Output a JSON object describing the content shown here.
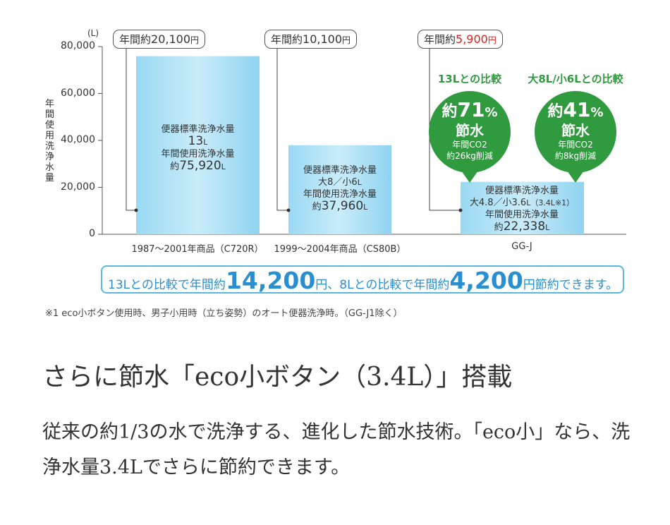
{
  "chart_data": {
    "type": "bar",
    "y_unit": "(L)",
    "ylabel": "年間使用洗浄水量",
    "ylim": [
      0,
      80000
    ],
    "yticks": [
      "80,000",
      "60,000",
      "40,000",
      "20,000",
      "0"
    ],
    "tick_values": [
      80000,
      60000,
      40000,
      20000,
      0
    ],
    "categories": [
      "1987〜2001年商品（C720R）",
      "1999〜2004年商品（CS80B）",
      "GG-J"
    ],
    "values": [
      75920,
      37960,
      22338
    ],
    "bar_color": "#8fd3f0",
    "callouts": [
      {
        "prefix": "年間約",
        "amount": "20,100",
        "unit": "円",
        "highlight": false
      },
      {
        "prefix": "年間約",
        "amount": "10,100",
        "unit": "円",
        "highlight": false
      },
      {
        "prefix": "年間約",
        "amount": "5,900",
        "unit": "円",
        "highlight": true
      }
    ],
    "bar_labels": [
      {
        "line1": "便器標準洗浄水量",
        "line2_num": "13",
        "line2_unit": "L",
        "line3": "年間使用洗浄水量",
        "line4_pre": "約",
        "line4_num": "75,920",
        "line4_unit": "L"
      },
      {
        "line1": "便器標準洗浄水量",
        "line2_num": "大8／小6",
        "line2_unit": "L",
        "line3": "年間使用洗浄水量",
        "line4_pre": "約",
        "line4_num": "37,960",
        "line4_unit": "L"
      },
      {
        "line1": "便器標準洗浄水量",
        "line2_num": "大4.8／小3.6",
        "line2_unit": "L（3.4L※1）",
        "line3": "年間使用洗浄水量",
        "line4_pre": "約",
        "line4_num": "22,338",
        "line4_unit": "L"
      }
    ],
    "comparisons": [
      {
        "heading": "13Lとの比較",
        "pre": "約",
        "num": "71",
        "pct": "%",
        "word": "節水",
        "co2": "年間CO2",
        "reduction": "約26kg削減"
      },
      {
        "heading": "大8L/小6Lとの比較",
        "pre": "約",
        "num": "41",
        "pct": "%",
        "word": "節水",
        "co2": "年間CO2",
        "reduction": "約8kg削減"
      }
    ],
    "bubble_color": "#2f9a3e"
  },
  "savings": {
    "part1": "13Lとの比較で年間約",
    "num1": "14,200",
    "part2": "円、8Lとの比較で年間約",
    "num2": "4,200",
    "part3": "円節約できます。"
  },
  "footnote": "※1 eco小ボタン使用時、男子小用時（立ち姿勢）のオート便器洗浄時。（GG-J1除く）",
  "headline": "さらに節水「eco小ボタン（3.4L）」搭載",
  "body": "従来の約1/3の水で洗浄する、進化した節水技術。「eco小」なら、洗浄水量3.4Lでさらに節約できます。"
}
